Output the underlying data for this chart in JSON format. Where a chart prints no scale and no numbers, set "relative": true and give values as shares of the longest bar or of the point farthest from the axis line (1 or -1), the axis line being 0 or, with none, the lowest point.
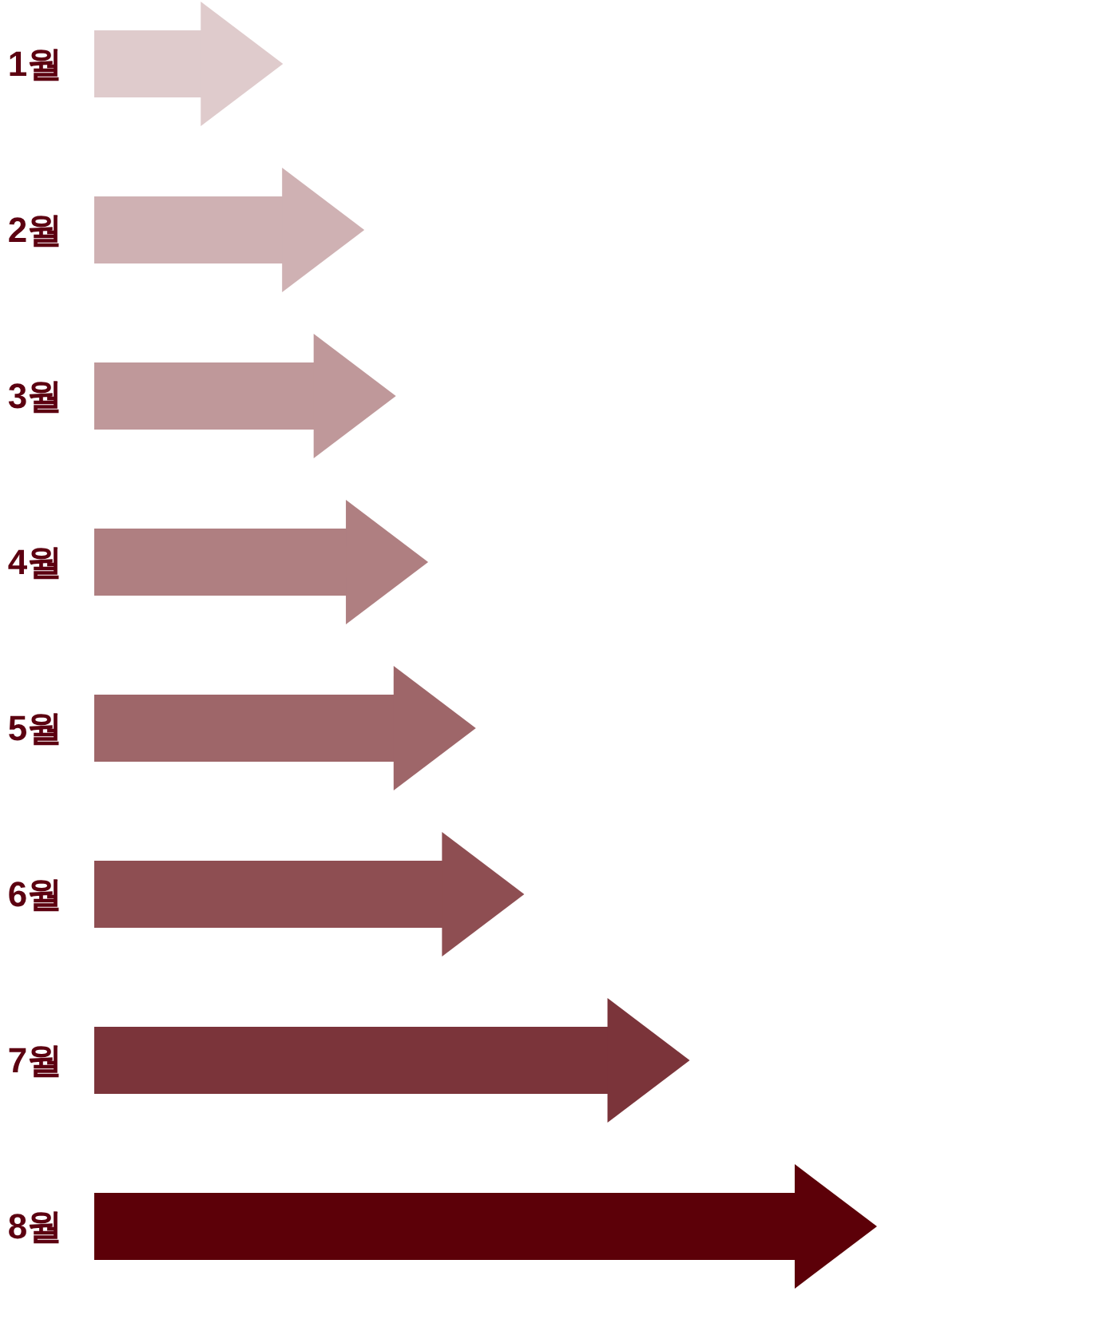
{
  "chart_data": {
    "type": "bar",
    "orientation": "horizontal",
    "relative": true,
    "categories": [
      "1월",
      "2월",
      "3월",
      "4월",
      "5월",
      "6월",
      "7월",
      "8월"
    ],
    "values": [
      0.153,
      0.269,
      0.314,
      0.36,
      0.428,
      0.497,
      0.733,
      1
    ],
    "colors": [
      "#dfcbcc",
      "#cfb1b3",
      "#bf989a",
      "#af7f81",
      "#9e6669",
      "#8e4e52",
      "#7b343a",
      "#5c0008"
    ]
  }
}
